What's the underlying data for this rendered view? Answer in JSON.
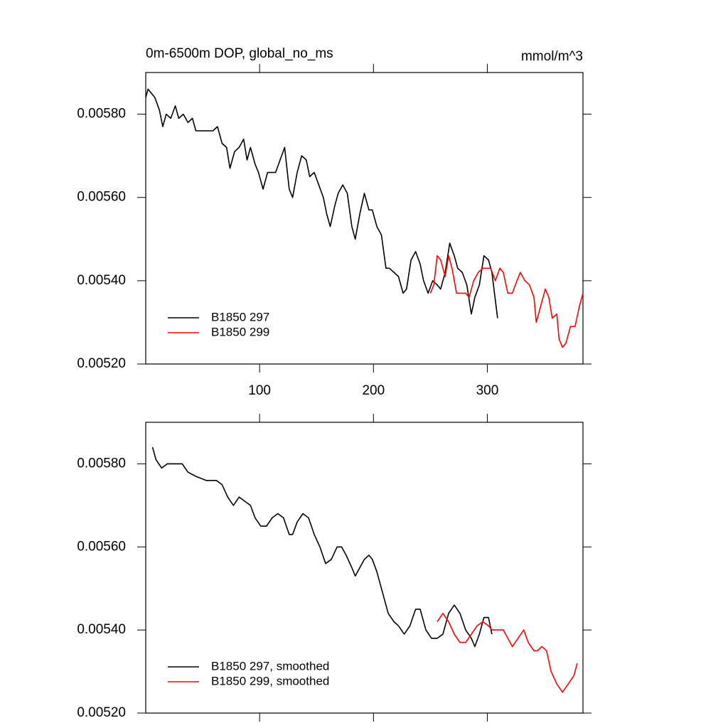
{
  "chart_data": [
    {
      "type": "line",
      "title": "0m-6500m DOP, global_no_ms",
      "units": "mmol/m^3",
      "xlim": [
        0,
        384
      ],
      "xticks": [
        100,
        200,
        300
      ],
      "ylim": [
        0.0052,
        0.0059
      ],
      "yticks": [
        {
          "value": 0.0052,
          "label": "0.00520"
        },
        {
          "value": 0.0054,
          "label": "0.00540"
        },
        {
          "value": 0.0056,
          "label": "0.00560"
        },
        {
          "value": 0.0058,
          "label": "0.00580"
        }
      ],
      "legend": "lower left",
      "series": [
        {
          "name": "B1850 297",
          "color": "#000000",
          "x": [
            0,
            2,
            8,
            12,
            15,
            18,
            22,
            26,
            29,
            33,
            37,
            41,
            44,
            49,
            54,
            59,
            63,
            67,
            71,
            74,
            78,
            82,
            86,
            89,
            92,
            96,
            99,
            103,
            107,
            111,
            114,
            118,
            122,
            126,
            129,
            133,
            137,
            141,
            144,
            148,
            152,
            156,
            159,
            162,
            166,
            169,
            173,
            177,
            181,
            184,
            188,
            192,
            196,
            199,
            203,
            207,
            211,
            214,
            218,
            222,
            226,
            229,
            233,
            237,
            241,
            244,
            248,
            252,
            256,
            259,
            263,
            267,
            271,
            274,
            278,
            282,
            286,
            289,
            293,
            297,
            301,
            304,
            309
          ],
          "values": [
            0.00584,
            0.00586,
            0.00584,
            0.00581,
            0.00577,
            0.0058,
            0.00579,
            0.00582,
            0.00579,
            0.0058,
            0.00578,
            0.00579,
            0.00576,
            0.00576,
            0.00576,
            0.00576,
            0.00577,
            0.00573,
            0.00572,
            0.00567,
            0.00571,
            0.00572,
            0.00574,
            0.00569,
            0.00572,
            0.00568,
            0.00566,
            0.00562,
            0.00566,
            0.00566,
            0.00566,
            0.00569,
            0.00572,
            0.00562,
            0.0056,
            0.00566,
            0.0057,
            0.00569,
            0.00565,
            0.00566,
            0.00563,
            0.0056,
            0.00556,
            0.00553,
            0.00558,
            0.00561,
            0.00563,
            0.00561,
            0.00553,
            0.0055,
            0.00556,
            0.00561,
            0.00557,
            0.00557,
            0.00553,
            0.00551,
            0.00543,
            0.00543,
            0.00542,
            0.00541,
            0.00537,
            0.00538,
            0.00545,
            0.00547,
            0.00544,
            0.0054,
            0.00537,
            0.0054,
            0.00539,
            0.00538,
            0.00542,
            0.00549,
            0.00546,
            0.00543,
            0.00542,
            0.00539,
            0.00532,
            0.00536,
            0.00539,
            0.00546,
            0.00545,
            0.00542,
            0.00531
          ]
        },
        {
          "name": "B1850 299",
          "color": "#ff0000",
          "x": [
            250,
            253,
            256,
            259,
            263,
            266,
            269,
            273,
            277,
            281,
            284,
            288,
            292,
            296,
            299,
            303,
            307,
            311,
            314,
            318,
            322,
            326,
            329,
            333,
            337,
            341,
            343,
            347,
            351,
            354,
            357,
            361,
            363,
            366,
            369,
            373,
            377,
            381,
            384
          ],
          "values": [
            0.00537,
            0.00539,
            0.00546,
            0.00545,
            0.00541,
            0.00546,
            0.00543,
            0.00537,
            0.00537,
            0.00537,
            0.00536,
            0.0054,
            0.00542,
            0.00543,
            0.00543,
            0.00543,
            0.0054,
            0.00543,
            0.00542,
            0.00537,
            0.00537,
            0.0054,
            0.00542,
            0.0054,
            0.00539,
            0.00536,
            0.0053,
            0.00534,
            0.00538,
            0.00536,
            0.00531,
            0.00532,
            0.00526,
            0.00524,
            0.00525,
            0.00529,
            0.00529,
            0.00534,
            0.00537
          ]
        }
      ]
    },
    {
      "type": "line",
      "xlim": [
        0,
        384
      ],
      "xticks": [
        100,
        200,
        300
      ],
      "ylim": [
        0.0052,
        0.0059
      ],
      "yticks": [
        {
          "value": 0.0052,
          "label": "0.00520"
        },
        {
          "value": 0.0054,
          "label": "0.00540"
        },
        {
          "value": 0.0056,
          "label": "0.00560"
        },
        {
          "value": 0.0058,
          "label": "0.00580"
        }
      ],
      "legend": "lower left",
      "series": [
        {
          "name": "B1850 297, smoothed",
          "color": "#000000",
          "x": [
            6,
            9,
            14,
            19,
            25,
            32,
            37,
            44,
            53,
            62,
            67,
            72,
            77,
            82,
            87,
            92,
            96,
            101,
            106,
            111,
            116,
            121,
            126,
            129,
            133,
            138,
            143,
            148,
            153,
            158,
            163,
            168,
            172,
            176,
            181,
            184,
            188,
            192,
            196,
            199,
            203,
            208,
            213,
            218,
            222,
            227,
            232,
            237,
            241,
            246,
            251,
            256,
            261,
            266,
            271,
            276,
            281,
            286,
            289,
            293,
            297,
            301,
            304
          ],
          "values": [
            0.00584,
            0.00581,
            0.00579,
            0.0058,
            0.0058,
            0.0058,
            0.00578,
            0.00577,
            0.00576,
            0.00576,
            0.00575,
            0.00572,
            0.0057,
            0.00572,
            0.00571,
            0.0057,
            0.00567,
            0.00565,
            0.00565,
            0.00567,
            0.00568,
            0.00567,
            0.00563,
            0.00563,
            0.00566,
            0.00568,
            0.00567,
            0.00563,
            0.0056,
            0.00556,
            0.00557,
            0.0056,
            0.0056,
            0.00558,
            0.00555,
            0.00553,
            0.00555,
            0.00557,
            0.00558,
            0.00557,
            0.00554,
            0.00549,
            0.00544,
            0.00542,
            0.00541,
            0.00539,
            0.00541,
            0.00545,
            0.00545,
            0.0054,
            0.00538,
            0.00538,
            0.00539,
            0.00544,
            0.00546,
            0.00544,
            0.0054,
            0.00538,
            0.00536,
            0.00539,
            0.00543,
            0.00543,
            0.00539
          ]
        },
        {
          "name": "B1850 299, smoothed",
          "color": "#ff0000",
          "x": [
            256,
            261,
            266,
            271,
            276,
            281,
            286,
            291,
            296,
            301,
            304,
            309,
            314,
            318,
            322,
            327,
            332,
            336,
            341,
            344,
            348,
            352,
            356,
            361,
            366,
            371,
            376,
            379
          ],
          "values": [
            0.00542,
            0.00544,
            0.00542,
            0.00539,
            0.00537,
            0.00537,
            0.00539,
            0.00541,
            0.00542,
            0.00541,
            0.0054,
            0.0054,
            0.0054,
            0.00538,
            0.00536,
            0.00538,
            0.0054,
            0.00537,
            0.00535,
            0.00535,
            0.00536,
            0.00535,
            0.0053,
            0.00527,
            0.00525,
            0.00527,
            0.00529,
            0.00532
          ]
        }
      ]
    }
  ]
}
